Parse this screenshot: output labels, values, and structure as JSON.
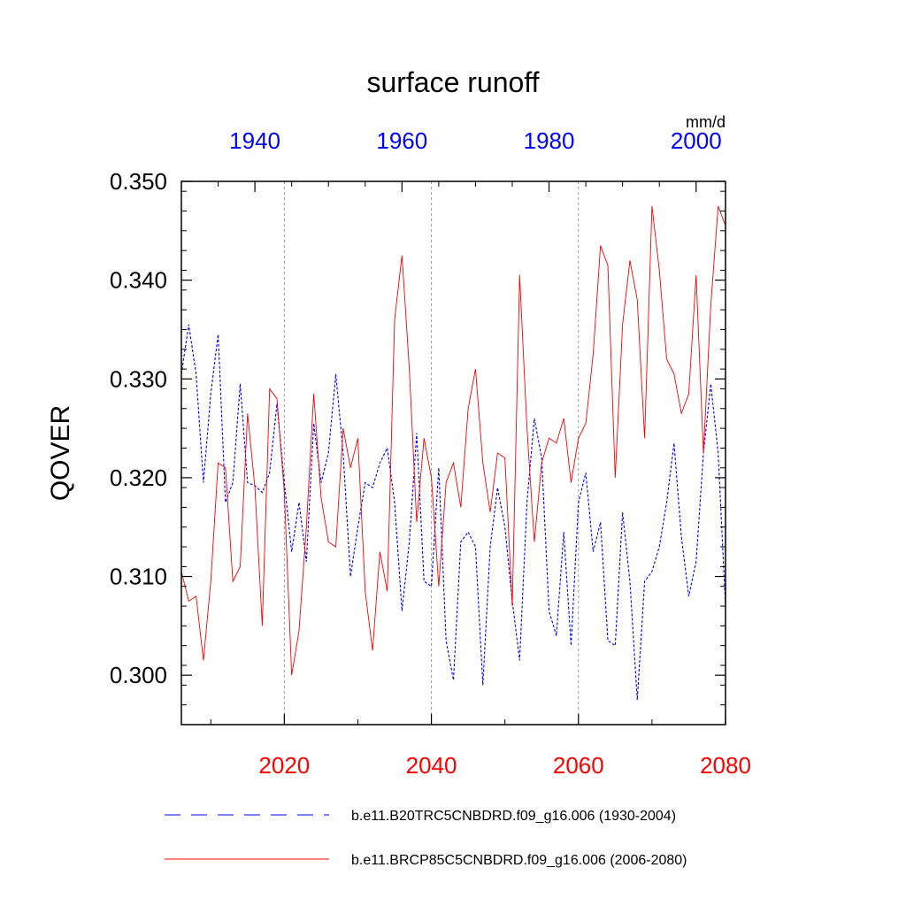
{
  "chart_data": {
    "type": "line",
    "title": "surface runoff",
    "units": "mm/d",
    "ylabel": "QOVER",
    "ylim": [
      0.295,
      0.35
    ],
    "yticks": [
      0.3,
      0.31,
      0.32,
      0.33,
      0.34,
      0.35
    ],
    "ytick_labels": [
      "0.300",
      "0.310",
      "0.320",
      "0.330",
      "0.340",
      "0.350"
    ],
    "grid": "vertical dashed at bottom-axis major ticks",
    "x_bottom": {
      "range": [
        2006,
        2080
      ],
      "ticks": [
        2020,
        2040,
        2060,
        2080
      ],
      "tick_labels": [
        "2020",
        "2040",
        "2060",
        "2080"
      ],
      "color": "#ff0000"
    },
    "x_top": {
      "range": [
        1930,
        2004
      ],
      "ticks": [
        1940,
        1960,
        1980,
        2000
      ],
      "tick_labels": [
        "1940",
        "1960",
        "1980",
        "2000"
      ],
      "color": "#0000ff"
    },
    "legend_position": "bottom",
    "series": [
      {
        "name": "b.e11.B20TRC5CNBDRD.f09_g16.006 (1930-2004)",
        "color": "#0000ff",
        "style": "dashed",
        "x_axis": "top",
        "x_start": 1930,
        "values": [
          0.3305,
          0.3355,
          0.3305,
          0.3195,
          0.3285,
          0.3345,
          0.3175,
          0.3195,
          0.3295,
          0.3195,
          0.3192,
          0.3185,
          0.3205,
          0.3275,
          0.3195,
          0.3125,
          0.3175,
          0.3115,
          0.3255,
          0.3195,
          0.3225,
          0.3305,
          0.3225,
          0.31,
          0.315,
          0.3195,
          0.319,
          0.3215,
          0.323,
          0.3175,
          0.3065,
          0.3135,
          0.3245,
          0.3095,
          0.309,
          0.321,
          0.3035,
          0.2995,
          0.3135,
          0.3145,
          0.313,
          0.299,
          0.313,
          0.319,
          0.315,
          0.3075,
          0.3015,
          0.3175,
          0.326,
          0.322,
          0.3065,
          0.304,
          0.3145,
          0.303,
          0.3175,
          0.3205,
          0.3125,
          0.3155,
          0.3035,
          0.303,
          0.3165,
          0.3095,
          0.2975,
          0.3095,
          0.3105,
          0.313,
          0.3175,
          0.3235,
          0.314,
          0.308,
          0.3115,
          0.3225,
          0.3295,
          0.3225,
          0.307
        ]
      },
      {
        "name": "b.e11.BRCP85C5CNBDRD.f09_g16.006 (2006-2080)",
        "color": "#ff0000",
        "style": "solid",
        "x_axis": "bottom",
        "x_start": 2006,
        "values": [
          0.3105,
          0.3075,
          0.308,
          0.3015,
          0.3095,
          0.3215,
          0.321,
          0.3095,
          0.311,
          0.3265,
          0.319,
          0.305,
          0.329,
          0.328,
          0.3185,
          0.3,
          0.3045,
          0.315,
          0.3285,
          0.318,
          0.3135,
          0.313,
          0.325,
          0.321,
          0.324,
          0.3085,
          0.3025,
          0.3125,
          0.3085,
          0.336,
          0.3425,
          0.331,
          0.3155,
          0.324,
          0.32,
          0.309,
          0.3195,
          0.3215,
          0.317,
          0.327,
          0.331,
          0.3215,
          0.3165,
          0.3225,
          0.322,
          0.307,
          0.3405,
          0.325,
          0.3135,
          0.3215,
          0.324,
          0.3235,
          0.326,
          0.3195,
          0.324,
          0.3255,
          0.3325,
          0.3435,
          0.3415,
          0.32,
          0.3355,
          0.342,
          0.338,
          0.324,
          0.3475,
          0.341,
          0.332,
          0.3305,
          0.3265,
          0.3285,
          0.3405,
          0.3225,
          0.3375,
          0.3475,
          0.3455
        ]
      }
    ]
  }
}
